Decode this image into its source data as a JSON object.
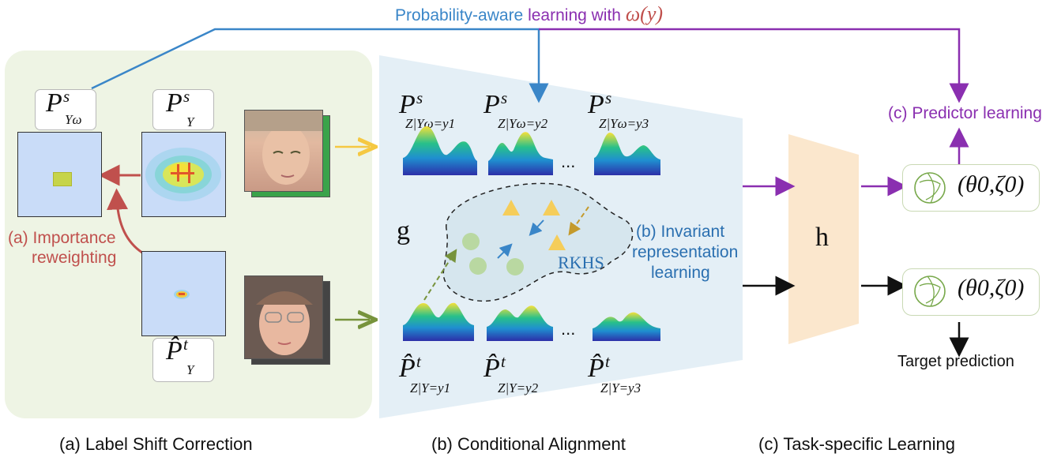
{
  "top_label": {
    "blue_part": "Probability-aware",
    "purple_part": " learning with ",
    "omega": "ω(y)"
  },
  "panel_a": {
    "weighted_label": {
      "base": "P",
      "sup": "s",
      "sub": "Yω"
    },
    "source_label": {
      "base": "P",
      "sup": "s",
      "sub": "Y"
    },
    "target_label": {
      "base": "P̂",
      "sup": "t",
      "sub": "Y"
    },
    "importance_line1": "(a) Importance",
    "importance_line2": "reweighting",
    "caption": "(a) Label Shift Correction"
  },
  "panel_b": {
    "source_conds": [
      {
        "base": "P",
        "sup": "s",
        "sub": "Z|Yω=y1"
      },
      {
        "base": "P",
        "sup": "s",
        "sub": "Z|Yω=y2"
      },
      {
        "base": "P",
        "sup": "s",
        "sub": "Z|Yω=y3"
      }
    ],
    "target_conds": [
      {
        "base": "P̂",
        "sup": "t",
        "sub": "Z|Y=y1"
      },
      {
        "base": "P̂",
        "sup": "t",
        "sub": "Z|Y=y2"
      },
      {
        "base": "P̂",
        "sup": "t",
        "sub": "Z|Y=y3"
      }
    ],
    "ellipsis": "...",
    "g_label": "g",
    "rkhs_label": "RKHS",
    "invariant_line1": "(b) Invariant",
    "invariant_line2": "representation",
    "invariant_line3": "learning",
    "caption": "(b) Conditional Alignment"
  },
  "panel_c": {
    "h_label": "h",
    "predictor_learning": "(c) Predictor learning",
    "param_top": "(θ0,ζ0)",
    "param_bottom": "(θ0,ζ0)",
    "target_prediction": "Target prediction",
    "caption": "(c) Task-specific Learning"
  },
  "colors": {
    "blue": "#3a86c8",
    "purple": "#8a2fb0",
    "red": "#c0504d",
    "green_arrow": "#77933c",
    "yellow_arrow": "#f5c842",
    "panel_a_bg": "#eef4e4",
    "panel_b_bg": "#e4eff6",
    "h_fill": "#fbe7cd"
  }
}
